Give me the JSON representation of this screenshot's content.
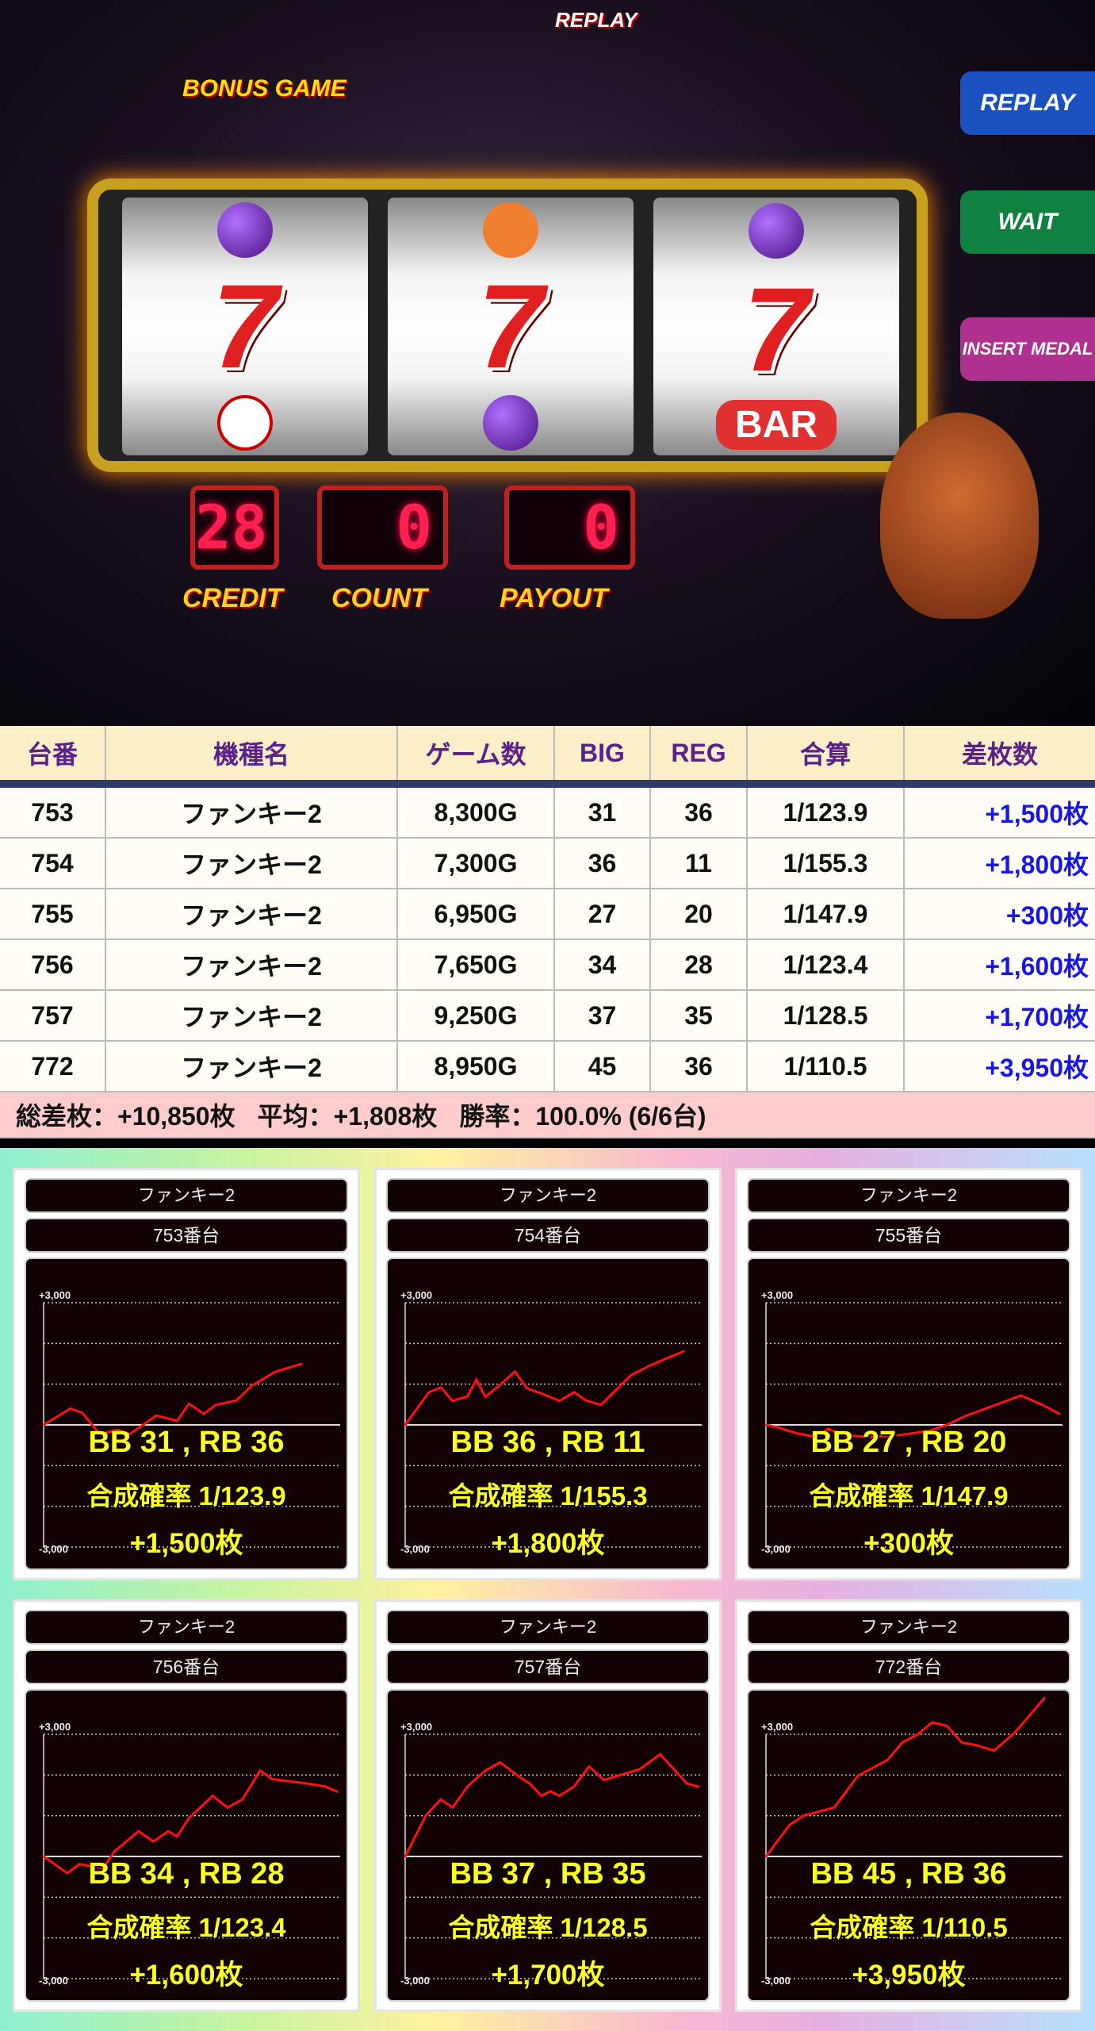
{
  "photo": {
    "credit_label": "CREDIT",
    "count_label": "COUNT",
    "payout_label": "PAYOUT",
    "credit": "28",
    "count": "0",
    "payout": "0",
    "bonus_game": "BONUS GAME",
    "replay": "REPLAY",
    "wait": "WAIT",
    "insert_medal": "INSERT MEDAL",
    "bar": "BAR",
    "seven": "7"
  },
  "table": {
    "headers": [
      "台番",
      "機種名",
      "ゲーム数",
      "BIG",
      "REG",
      "合算",
      "差枚数"
    ],
    "rows": [
      [
        "753",
        "ファンキー2",
        "8,300G",
        "31",
        "36",
        "1/123.9",
        "+1,500枚"
      ],
      [
        "754",
        "ファンキー2",
        "7,300G",
        "36",
        "11",
        "1/155.3",
        "+1,800枚"
      ],
      [
        "755",
        "ファンキー2",
        "6,950G",
        "27",
        "20",
        "1/147.9",
        "+300枚"
      ],
      [
        "756",
        "ファンキー2",
        "7,650G",
        "34",
        "28",
        "1/123.4",
        "+1,600枚"
      ],
      [
        "757",
        "ファンキー2",
        "9,250G",
        "37",
        "35",
        "1/128.5",
        "+1,700枚"
      ],
      [
        "772",
        "ファンキー2",
        "8,950G",
        "45",
        "36",
        "1/110.5",
        "+3,950枚"
      ]
    ],
    "summary": {
      "total": "総差枚：+10,850枚",
      "average": "平均：+1,808枚",
      "win_rate": "勝率：100.0% (6/6台)"
    },
    "header_text_color": "#5a208c",
    "diff_color": "#1616e6"
  },
  "chart_data": [
    {
      "type": "line",
      "machine": "ファンキー2",
      "unit": "753番台",
      "ylim": [
        -3000,
        3000
      ],
      "yticks": [
        "+3,000",
        "-3,000"
      ],
      "grid": true,
      "line_color": "#ff1010",
      "xlim": [
        0,
        100
      ],
      "x": [
        0,
        9,
        13,
        19,
        25,
        29,
        38,
        45,
        49,
        54,
        58,
        65,
        70,
        78,
        87
      ],
      "y": [
        0,
        400,
        300,
        -230,
        -120,
        -230,
        230,
        100,
        520,
        270,
        490,
        600,
        950,
        1300,
        1500
      ],
      "bb_rb": "BB 31 , RB 36",
      "prob": "合成確率  1/123.9",
      "diff": "+1,500枚"
    },
    {
      "type": "line",
      "machine": "ファンキー2",
      "unit": "754番台",
      "ylim": [
        -3000,
        3000
      ],
      "yticks": [
        "+3,000",
        "-3,000"
      ],
      "grid": true,
      "line_color": "#ff1010",
      "xlim": [
        0,
        100
      ],
      "x": [
        0,
        8,
        12,
        16,
        21,
        24,
        27,
        32,
        37,
        41,
        46,
        52,
        57,
        61,
        66,
        76,
        82,
        88,
        94
      ],
      "y": [
        0,
        800,
        920,
        590,
        700,
        1110,
        690,
        980,
        1310,
        900,
        770,
        590,
        800,
        600,
        490,
        1210,
        1440,
        1630,
        1810
      ],
      "bb_rb": "BB 36 , RB 11",
      "prob": "合成確率  1/155.3",
      "diff": "+1,800枚"
    },
    {
      "type": "line",
      "machine": "ファンキー2",
      "unit": "755番台",
      "ylim": [
        -3000,
        3000
      ],
      "yticks": [
        "+3,000",
        "-3,000"
      ],
      "grid": true,
      "line_color": "#ff1010",
      "xlim": [
        0,
        100
      ],
      "x": [
        0,
        4,
        10,
        17,
        21,
        26,
        35,
        45,
        55,
        61,
        67,
        76,
        86,
        93,
        99
      ],
      "y": [
        0,
        -60,
        -200,
        -300,
        -100,
        -250,
        -300,
        -250,
        -150,
        0,
        210,
        450,
        720,
        500,
        270
      ],
      "bb_rb": "BB 27 , RB 20",
      "prob": "合成確率  1/147.9",
      "diff": "+300枚"
    },
    {
      "type": "line",
      "machine": "ファンキー2",
      "unit": "756番台",
      "ylim": [
        -3000,
        3000
      ],
      "yticks": [
        "+3,000",
        "-3,000"
      ],
      "grid": true,
      "line_color": "#ff1010",
      "xlim": [
        0,
        100
      ],
      "x": [
        0,
        8,
        12,
        20,
        24,
        32,
        37,
        42,
        45,
        49,
        57,
        62,
        67,
        73,
        77,
        88,
        95,
        99
      ],
      "y": [
        0,
        -410,
        -190,
        -290,
        130,
        620,
        370,
        620,
        490,
        940,
        1490,
        1200,
        1400,
        2110,
        1900,
        1800,
        1720,
        1590
      ],
      "bb_rb": "BB 34 , RB 28",
      "prob": "合成確率  1/123.4",
      "diff": "+1,600枚"
    },
    {
      "type": "line",
      "machine": "ファンキー2",
      "unit": "757番台",
      "ylim": [
        -3000,
        3000
      ],
      "yticks": [
        "+3,000",
        "-3,000"
      ],
      "grid": true,
      "line_color": "#ff1010",
      "xlim": [
        0,
        100
      ],
      "x": [
        0,
        7,
        12,
        16,
        21,
        27,
        32,
        38,
        42,
        46,
        49,
        52,
        57,
        62,
        67,
        73,
        79,
        86,
        95,
        99
      ],
      "y": [
        0,
        1010,
        1400,
        1200,
        1720,
        2110,
        2310,
        1980,
        1790,
        1490,
        1600,
        1490,
        1720,
        2210,
        1880,
        2010,
        2140,
        2510,
        1790,
        1710
      ],
      "bb_rb": "BB 37 , RB 35",
      "prob": "合成確率  1/128.5",
      "diff": "+1,700枚"
    },
    {
      "type": "line",
      "machine": "ファンキー2",
      "unit": "772番台",
      "ylim": [
        -3000,
        3000
      ],
      "yticks": [
        "+3,000",
        "-3,000"
      ],
      "grid": true,
      "line_color": "#ff1010",
      "xlim": [
        0,
        100
      ],
      "x": [
        0,
        8,
        13,
        23,
        31,
        41,
        46,
        51,
        56,
        61,
        66,
        71,
        77,
        84,
        94
      ],
      "y": [
        0,
        780,
        1010,
        1200,
        1980,
        2370,
        2800,
        2990,
        3290,
        3210,
        2800,
        2730,
        2600,
        3050,
        3900
      ],
      "bb_rb": "BB 45 , RB 36",
      "prob": "合成確率  1/110.5",
      "diff": "+3,950枚"
    }
  ]
}
